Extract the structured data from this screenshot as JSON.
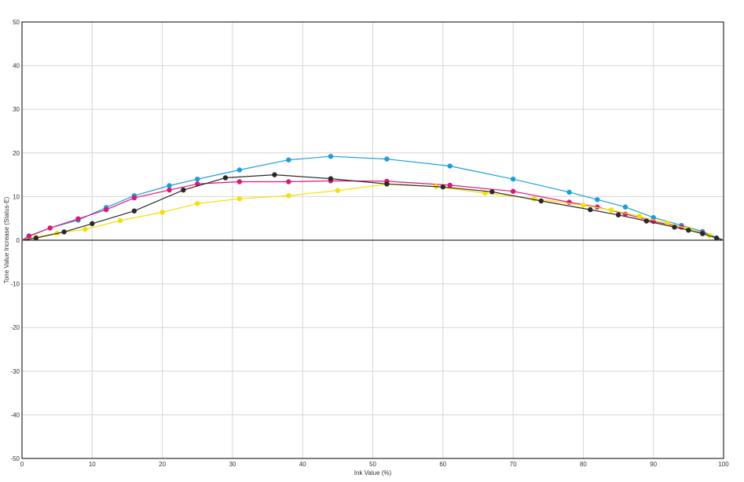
{
  "chart_data": {
    "type": "line",
    "title": "",
    "xlabel": "Ink Value (%)",
    "ylabel": "Tone Value Increase (Status-E)",
    "xlim": [
      0,
      100
    ],
    "ylim": [
      -50,
      50
    ],
    "xticks": [
      0,
      10,
      20,
      30,
      40,
      50,
      60,
      70,
      80,
      90,
      100
    ],
    "yticks": [
      -50,
      -40,
      -30,
      -20,
      -10,
      0,
      10,
      20,
      30,
      40,
      50
    ],
    "grid": true,
    "legend": "none",
    "series": [
      {
        "color": "#1a9ee0",
        "x": [
          0,
          1,
          4,
          8,
          12,
          16,
          21,
          25,
          31,
          38,
          44,
          52,
          61,
          70,
          78,
          82,
          86,
          90,
          94,
          97,
          100
        ],
        "y": [
          0,
          1.0,
          2.8,
          4.6,
          7.5,
          10.2,
          12.5,
          14.0,
          16.1,
          18.4,
          19.2,
          18.6,
          17.0,
          14.0,
          11.0,
          9.3,
          7.6,
          5.2,
          3.4,
          2.0,
          0
        ]
      },
      {
        "color": "#e0157a",
        "x": [
          0,
          1,
          4,
          8,
          12,
          16,
          21,
          25,
          31,
          38,
          44,
          52,
          61,
          70,
          78,
          82,
          86,
          90,
          94,
          97,
          100
        ],
        "y": [
          0,
          0.9,
          2.8,
          4.9,
          7.0,
          9.7,
          11.5,
          12.9,
          13.4,
          13.4,
          13.6,
          13.5,
          12.6,
          11.2,
          8.7,
          7.6,
          6.0,
          4.3,
          3.0,
          1.7,
          0
        ]
      },
      {
        "color": "#f5e000",
        "x": [
          0,
          2,
          5,
          9,
          14,
          20,
          25,
          31,
          38,
          45,
          52,
          59,
          66,
          73,
          80,
          84,
          88,
          92,
          95,
          98,
          100
        ],
        "y": [
          0,
          0.7,
          1.6,
          2.5,
          4.5,
          6.4,
          8.4,
          9.5,
          10.2,
          11.4,
          12.8,
          12.3,
          10.8,
          9.5,
          8.0,
          6.9,
          5.5,
          3.9,
          2.6,
          1.1,
          0
        ]
      },
      {
        "color": "#2a2a2a",
        "x": [
          0,
          2,
          6,
          10,
          16,
          23,
          29,
          36,
          44,
          52,
          60,
          67,
          74,
          81,
          85,
          89,
          93,
          95,
          97,
          99,
          100
        ],
        "y": [
          0,
          0.5,
          1.9,
          3.8,
          6.7,
          11.5,
          14.3,
          15.0,
          14.1,
          12.9,
          12.2,
          11.1,
          9.0,
          7.0,
          5.8,
          4.4,
          3.0,
          2.3,
          1.5,
          0.5,
          0
        ]
      }
    ]
  }
}
